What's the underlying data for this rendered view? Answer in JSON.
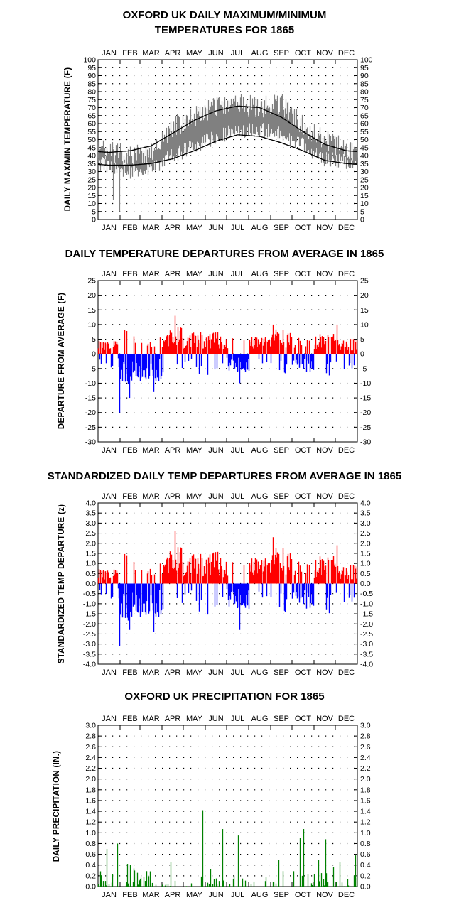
{
  "months": [
    "JAN",
    "FEB",
    "MAR",
    "APR",
    "MAY",
    "JUN",
    "JUL",
    "AUG",
    "SEP",
    "OCT",
    "NOV",
    "DEC"
  ],
  "colors": {
    "positive": "#ff0000",
    "negative": "#0000ff",
    "precip": "#008000",
    "temp_band": "#808080",
    "normal": "#000000",
    "grid": "#000000"
  },
  "chart_data": [
    {
      "type": "line",
      "title_line1": "OXFORD UK DAILY MAXIMUM/MINIMUM",
      "title_line2": "TEMPERATURES FOR 1865",
      "ylabel": "DAILY MAX/MIN TEMPERATURE  (F)",
      "ylim": [
        0,
        100
      ],
      "ytick_step": 5,
      "ytick_labels": [
        "0",
        "5",
        "10",
        "15",
        "20",
        "25",
        "30",
        "35",
        "40",
        "45",
        "50",
        "55",
        "60",
        "65",
        "70",
        "75",
        "80",
        "85",
        "90",
        "95",
        "100"
      ],
      "grid": true,
      "x_months": [
        "JAN",
        "FEB",
        "MAR",
        "APR",
        "MAY",
        "JUN",
        "JUL",
        "AUG",
        "SEP",
        "OCT",
        "NOV",
        "DEC"
      ],
      "series": [
        {
          "name": "",
          "kind": "daily_max_min_band",
          "max_monthly_approx": [
            42,
            40,
            42,
            58,
            64,
            70,
            72,
            70,
            72,
            58,
            50,
            44
          ],
          "min_monthly_approx": [
            34,
            30,
            32,
            40,
            46,
            52,
            56,
            56,
            54,
            46,
            38,
            36
          ]
        },
        {
          "name": "",
          "kind": "normal_max",
          "monthly": [
            42,
            43,
            46,
            54,
            62,
            68,
            71,
            70,
            64,
            55,
            47,
            43
          ]
        },
        {
          "name": "",
          "kind": "normal_min",
          "monthly": [
            34,
            34,
            35,
            38,
            43,
            49,
            53,
            52,
            48,
            43,
            37,
            35
          ]
        }
      ]
    },
    {
      "type": "bar",
      "title": "DAILY TEMPERATURE DEPARTURES FROM AVERAGE IN 1865",
      "ylabel": "DEPARTURE FROM AVERAGE  (F)",
      "ylim": [
        -30,
        25
      ],
      "ytick_step": 5,
      "ytick_labels": [
        "-30",
        "-25",
        "-20",
        "-15",
        "-10",
        "-5",
        "0",
        "5",
        "10",
        "15",
        "20",
        "25"
      ],
      "grid": true,
      "x_months": [
        "JAN",
        "FEB",
        "MAR",
        "APR",
        "MAY",
        "JUN",
        "JUL",
        "AUG",
        "SEP",
        "OCT",
        "NOV",
        "DEC"
      ],
      "monthly_sign_pattern": [
        1,
        -1,
        -1,
        1,
        1,
        1,
        -1,
        1,
        1,
        -1,
        1,
        1
      ],
      "monthly_amplitude": [
        5,
        10,
        9,
        9,
        7,
        7,
        6,
        6,
        8,
        6,
        7,
        5
      ],
      "extremes": {
        "max": 13,
        "min": -20
      }
    },
    {
      "type": "bar",
      "title": "STANDARDIZED DAILY TEMP DEPARTURES FROM AVERAGE IN 1865",
      "ylabel": "STANDARDIZED TEMP DEPARTURE  (z)",
      "ylim": [
        -4.0,
        4.0
      ],
      "ytick_step": 0.5,
      "ytick_labels": [
        "-4.0",
        "-3.5",
        "-3.0",
        "-2.5",
        "-2.0",
        "-1.5",
        "-1.0",
        "-0.5",
        "0.0",
        "0.5",
        "1.0",
        "1.5",
        "2.0",
        "2.5",
        "3.0",
        "3.5",
        "4.0"
      ],
      "grid": true,
      "x_months": [
        "JAN",
        "FEB",
        "MAR",
        "APR",
        "MAY",
        "JUN",
        "JUL",
        "AUG",
        "SEP",
        "OCT",
        "NOV",
        "DEC"
      ],
      "monthly_sign_pattern": [
        1,
        -1,
        -1,
        1,
        1,
        1,
        -1,
        1,
        1,
        -1,
        1,
        1
      ],
      "monthly_amplitude": [
        0.8,
        1.8,
        1.6,
        1.8,
        1.4,
        1.5,
        1.2,
        1.3,
        1.7,
        1.2,
        1.4,
        0.9
      ],
      "extremes": {
        "max": 2.6,
        "min": -3.1
      }
    },
    {
      "type": "bar",
      "title": "OXFORD UK PRECIPITATION FOR 1865",
      "ylabel": "DAILY PRECIPITATION (IN.)",
      "ylim": [
        0.0,
        3.0
      ],
      "ytick_step": 0.2,
      "ytick_labels": [
        "0.0",
        "0.2",
        "0.4",
        "0.6",
        "0.8",
        "1.0",
        "1.2",
        "1.4",
        "1.6",
        "1.8",
        "2.0",
        "2.2",
        "2.4",
        "2.6",
        "2.8",
        "3.0"
      ],
      "grid": true,
      "x_months": [
        "JAN",
        "FEB",
        "MAR",
        "APR",
        "MAY",
        "JUN",
        "JUL",
        "AUG",
        "SEP",
        "OCT",
        "NOV",
        "DEC"
      ],
      "notable_days": [
        {
          "day": 12,
          "value": 0.7
        },
        {
          "day": 27,
          "value": 0.8
        },
        {
          "day": 45,
          "value": 0.4
        },
        {
          "day": 102,
          "value": 0.45
        },
        {
          "day": 147,
          "value": 1.42
        },
        {
          "day": 175,
          "value": 1.07
        },
        {
          "day": 197,
          "value": 0.95
        },
        {
          "day": 254,
          "value": 0.5
        },
        {
          "day": 284,
          "value": 0.9
        },
        {
          "day": 289,
          "value": 1.07
        },
        {
          "day": 310,
          "value": 0.5
        },
        {
          "day": 320,
          "value": 0.88
        },
        {
          "day": 340,
          "value": 0.45
        },
        {
          "day": 362,
          "value": 0.58
        }
      ]
    }
  ]
}
